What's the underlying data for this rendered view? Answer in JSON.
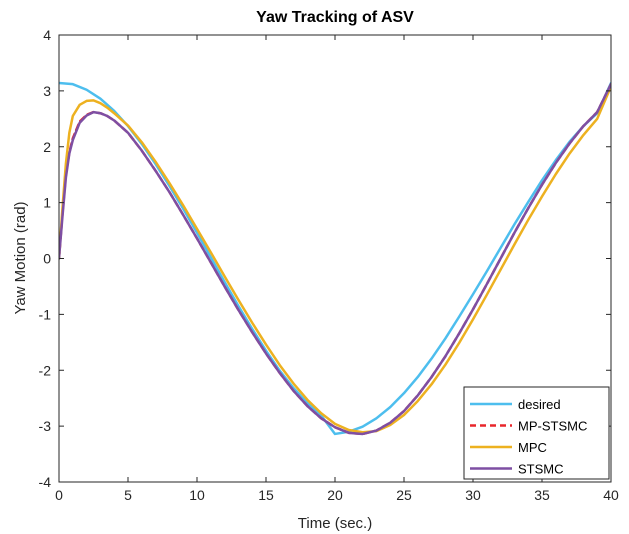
{
  "chart_data": {
    "type": "line",
    "title": "Yaw Tracking of ASV",
    "xlabel": "Time (sec.)",
    "ylabel": "Yaw Motion (rad)",
    "xlim": [
      0,
      40
    ],
    "ylim": [
      -4,
      4
    ],
    "xticks": [
      0,
      5,
      10,
      15,
      20,
      25,
      30,
      35,
      40
    ],
    "yticks": [
      -4,
      -3,
      -2,
      -1,
      0,
      1,
      2,
      3,
      4
    ],
    "grid": false,
    "legend_position": "bottom-right",
    "series": [
      {
        "name": "desired",
        "color": "#4DBEEE",
        "style": "solid",
        "x": [
          0,
          1,
          2,
          3,
          4,
          5,
          6,
          7,
          8,
          9,
          10,
          11,
          12,
          13,
          14,
          15,
          16,
          17,
          18,
          19,
          20,
          21,
          22,
          23,
          24,
          25,
          26,
          27,
          28,
          29,
          30,
          31,
          32,
          33,
          34,
          35,
          36,
          37,
          38,
          39,
          40
        ],
        "y": [
          3.14,
          3.12,
          3.02,
          2.86,
          2.64,
          2.37,
          2.05,
          1.69,
          1.3,
          0.89,
          0.46,
          0.02,
          -0.42,
          -0.85,
          -1.26,
          -1.65,
          -2.01,
          -2.32,
          -2.59,
          -2.81,
          -3.14,
          -3.1,
          -3.01,
          -2.86,
          -2.66,
          -2.41,
          -2.12,
          -1.79,
          -1.43,
          -1.04,
          -0.64,
          -0.23,
          0.19,
          0.61,
          1.01,
          1.4,
          1.76,
          2.09,
          2.37,
          2.6,
          3.14
        ]
      },
      {
        "name": "MP-STSMC",
        "color": "#E8262B",
        "style": "dashed",
        "x": [
          0,
          0.25,
          0.5,
          0.75,
          1,
          1.5,
          2,
          2.5,
          3,
          3.5,
          4,
          5,
          6,
          7,
          8,
          9,
          10,
          11,
          12,
          13,
          14,
          15,
          16,
          17,
          18,
          19,
          20,
          21,
          22,
          23,
          24,
          25,
          26,
          27,
          28,
          29,
          30,
          31,
          32,
          33,
          34,
          35,
          36,
          37,
          38,
          39,
          40
        ],
        "y": [
          0,
          0.8,
          1.5,
          1.9,
          2.15,
          2.45,
          2.57,
          2.62,
          2.6,
          2.55,
          2.47,
          2.25,
          1.93,
          1.57,
          1.19,
          0.78,
          0.36,
          -0.07,
          -0.5,
          -0.92,
          -1.32,
          -1.7,
          -2.05,
          -2.37,
          -2.64,
          -2.86,
          -3.02,
          -3.12,
          -3.14,
          -3.08,
          -2.94,
          -2.73,
          -2.45,
          -2.12,
          -1.75,
          -1.34,
          -0.91,
          -0.46,
          0.0,
          0.46,
          0.9,
          1.32,
          1.71,
          2.06,
          2.37,
          2.62,
          3.12
        ]
      },
      {
        "name": "MPC",
        "color": "#EDB120",
        "style": "solid",
        "x": [
          0,
          0.25,
          0.5,
          0.75,
          1,
          1.5,
          2,
          2.5,
          3,
          3.5,
          4,
          5,
          6,
          7,
          8,
          9,
          10,
          11,
          12,
          13,
          14,
          15,
          16,
          17,
          18,
          19,
          20,
          21,
          22,
          23,
          24,
          25,
          26,
          27,
          28,
          29,
          30,
          31,
          32,
          33,
          34,
          35,
          36,
          37,
          38,
          39,
          40
        ],
        "y": [
          0,
          0.9,
          1.7,
          2.25,
          2.55,
          2.75,
          2.82,
          2.83,
          2.78,
          2.7,
          2.6,
          2.38,
          2.08,
          1.73,
          1.35,
          0.95,
          0.53,
          0.11,
          -0.32,
          -0.74,
          -1.15,
          -1.54,
          -1.91,
          -2.24,
          -2.53,
          -2.77,
          -2.96,
          -3.07,
          -3.11,
          -3.09,
          -2.98,
          -2.8,
          -2.55,
          -2.25,
          -1.9,
          -1.51,
          -1.09,
          -0.65,
          -0.2,
          0.25,
          0.69,
          1.11,
          1.51,
          1.88,
          2.21,
          2.5,
          3.08
        ]
      },
      {
        "name": "STSMC",
        "color": "#7E4FA3",
        "style": "solid",
        "x": [
          0,
          0.25,
          0.5,
          0.75,
          1,
          1.5,
          2,
          2.5,
          3,
          3.5,
          4,
          5,
          6,
          7,
          8,
          9,
          10,
          11,
          12,
          13,
          14,
          15,
          16,
          17,
          18,
          19,
          20,
          21,
          22,
          23,
          24,
          25,
          26,
          27,
          28,
          29,
          30,
          31,
          32,
          33,
          34,
          35,
          36,
          37,
          38,
          39,
          40
        ],
        "y": [
          0,
          0.75,
          1.45,
          1.88,
          2.12,
          2.43,
          2.56,
          2.62,
          2.6,
          2.55,
          2.47,
          2.25,
          1.93,
          1.57,
          1.19,
          0.78,
          0.36,
          -0.07,
          -0.5,
          -0.92,
          -1.32,
          -1.7,
          -2.05,
          -2.37,
          -2.64,
          -2.86,
          -3.02,
          -3.12,
          -3.14,
          -3.08,
          -2.94,
          -2.73,
          -2.45,
          -2.12,
          -1.75,
          -1.34,
          -0.91,
          -0.46,
          0.0,
          0.46,
          0.9,
          1.32,
          1.71,
          2.06,
          2.37,
          2.62,
          3.12
        ]
      }
    ]
  }
}
